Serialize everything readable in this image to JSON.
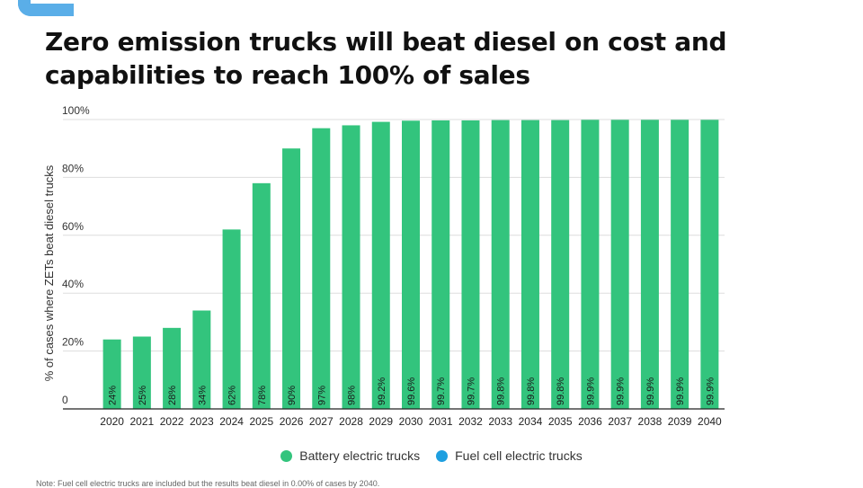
{
  "title": "Zero emission trucks will beat diesel on cost and capabilities to reach 100% of sales",
  "colors": {
    "battery": "#33c47d",
    "fuel_cell": "#1e9fe0",
    "accent": "#5aaee8",
    "grid": "#dddddd",
    "axis": "#222222"
  },
  "legend": [
    {
      "label": "Battery electric trucks",
      "color": "#33c47d"
    },
    {
      "label": "Fuel cell electric trucks",
      "color": "#1e9fe0"
    }
  ],
  "footnote": "Note: Fuel cell electric trucks are included but the results beat diesel in 0.00% of cases by 2040.",
  "chart_data": {
    "type": "bar",
    "ylabel": "% of cases where ZETs beat diesel trucks",
    "xlabel": "",
    "ylim": [
      0,
      100
    ],
    "yticks": [
      0,
      20,
      40,
      60,
      80,
      100
    ],
    "ytick_labels": [
      "0",
      "20%",
      "40%",
      "60%",
      "80%",
      "100%"
    ],
    "grid": true,
    "legend_position": "bottom",
    "categories": [
      "2020",
      "2021",
      "2022",
      "2023",
      "2024",
      "2025",
      "2026",
      "2027",
      "2028",
      "2029",
      "2030",
      "2031",
      "2032",
      "2033",
      "2034",
      "2035",
      "2036",
      "2037",
      "2038",
      "2039",
      "2040"
    ],
    "series": [
      {
        "name": "Battery electric trucks",
        "values": [
          24,
          25,
          28,
          34,
          62,
          78,
          90,
          97,
          98,
          99.2,
          99.6,
          99.7,
          99.7,
          99.8,
          99.8,
          99.8,
          99.9,
          99.9,
          99.9,
          99.9,
          99.9
        ],
        "data_labels": [
          "24%",
          "25%",
          "28%",
          "34%",
          "62%",
          "78%",
          "90%",
          "97%",
          "98%",
          "99.2%",
          "99.6%",
          "99.7%",
          "99.7%",
          "99.8%",
          "99.8%",
          "99.8%",
          "99.9%",
          "99.9%",
          "99.9%",
          "99.9%",
          "99.9%"
        ]
      }
    ]
  }
}
